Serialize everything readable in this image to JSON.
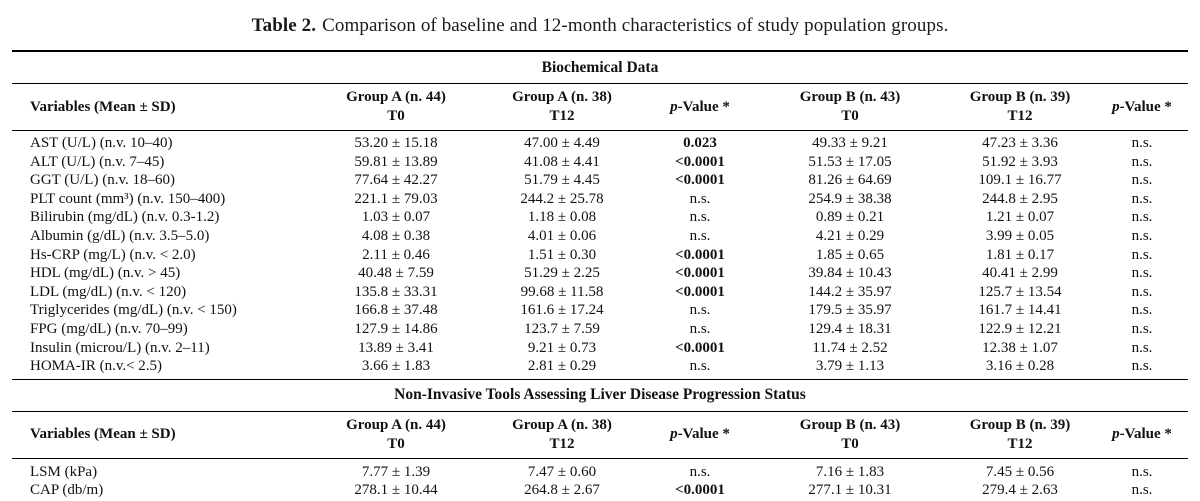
{
  "title": {
    "label": "Table 2.",
    "text": "Comparison of baseline and 12-month characteristics of study population groups."
  },
  "columns": [
    {
      "header": "Variables (Mean ± SD)"
    },
    {
      "group": "Group A (n. 44)",
      "time": "T0"
    },
    {
      "group": "Group A (n. 38)",
      "time": "T12"
    },
    {
      "p_italic": "p",
      "p_rest": "-Value *"
    },
    {
      "group": "Group B (n. 43)",
      "time": "T0"
    },
    {
      "group": "Group B (n. 39)",
      "time": "T12"
    },
    {
      "p_italic": "p",
      "p_rest": "-Value *"
    }
  ],
  "sections": [
    {
      "heading": "Biochemical Data",
      "rows": [
        {
          "cells": [
            "AST (U/L) (n.v. 10–40)",
            "53.20 ± 15.18",
            "47.00 ± 4.49",
            "0.023",
            "49.33 ± 9.21",
            "47.23 ± 3.36",
            "n.s."
          ]
        },
        {
          "cells": [
            "ALT (U/L) (n.v. 7–45)",
            "59.81 ± 13.89",
            "41.08 ± 4.41",
            "<0.0001",
            "51.53 ± 17.05",
            "51.92 ± 3.93",
            "n.s."
          ]
        },
        {
          "cells": [
            "GGT (U/L) (n.v. 18–60)",
            "77.64 ± 42.27",
            "51.79 ± 4.45",
            "<0.0001",
            "81.26 ± 64.69",
            "109.1 ± 16.77",
            "n.s."
          ]
        },
        {
          "cells": [
            "PLT count (mm³) (n.v. 150–400)",
            "221.1 ± 79.03",
            "244.2 ± 25.78",
            "n.s.",
            "254.9 ± 38.38",
            "244.8 ± 2.95",
            "n.s."
          ]
        },
        {
          "cells": [
            "Bilirubin (mg/dL) (n.v. 0.3-1.2)",
            "1.03 ± 0.07",
            "1.18 ± 0.08",
            "n.s.",
            "0.89 ± 0.21",
            "1.21 ± 0.07",
            "n.s."
          ]
        },
        {
          "cells": [
            "Albumin (g/dL) (n.v. 3.5–5.0)",
            "4.08 ± 0.38",
            "4.01 ± 0.06",
            "n.s.",
            "4.21 ± 0.29",
            "3.99 ± 0.05",
            "n.s."
          ]
        },
        {
          "cells": [
            "Hs-CRP (mg/L) (n.v. < 2.0)",
            "2.11 ± 0.46",
            "1.51 ± 0.30",
            "<0.0001",
            "1.85 ± 0.65",
            "1.81 ± 0.17",
            "n.s."
          ]
        },
        {
          "cells": [
            "HDL (mg/dL) (n.v. > 45)",
            "40.48 ± 7.59",
            "51.29 ± 2.25",
            "<0.0001",
            "39.84 ± 10.43",
            "40.41 ± 2.99",
            "n.s."
          ]
        },
        {
          "cells": [
            "LDL (mg/dL) (n.v. < 120)",
            "135.8 ± 33.31",
            "99.68 ± 11.58",
            "<0.0001",
            "144.2 ± 35.97",
            "125.7 ± 13.54",
            "n.s."
          ]
        },
        {
          "cells": [
            "Triglycerides (mg/dL) (n.v. < 150)",
            "166.8 ± 37.48",
            "161.6 ± 17.24",
            "n.s.",
            "179.5 ± 35.97",
            "161.7 ± 14.41",
            "n.s."
          ]
        },
        {
          "cells": [
            "FPG (mg/dL) (n.v. 70–99)",
            "127.9 ± 14.86",
            "123.7 ± 7.59",
            "n.s.",
            "129.4 ± 18.31",
            "122.9 ± 12.21",
            "n.s."
          ]
        },
        {
          "cells": [
            "Insulin (microu/L) (n.v. 2–11)",
            "13.89 ± 3.41",
            "9.21 ± 0.73",
            "<0.0001",
            "11.74 ± 2.52",
            "12.38 ± 1.07",
            "n.s."
          ]
        },
        {
          "cells": [
            "HOMA-IR (n.v.< 2.5)",
            "3.66 ± 1.83",
            "2.81 ± 0.29",
            "n.s.",
            "3.79 ± 1.13",
            "3.16 ± 0.28",
            "n.s."
          ]
        }
      ]
    },
    {
      "heading": "Non-Invasive Tools Assessing Liver Disease Progression Status",
      "rows": [
        {
          "cells": [
            "LSM (kPa)",
            "7.77 ± 1.39",
            "7.47 ± 0.60",
            "n.s.",
            "7.16 ± 1.83",
            "7.45 ± 0.56",
            "n.s."
          ]
        },
        {
          "cells": [
            "CAP (db/m)",
            "278.1 ± 10.44",
            "264.8 ± 2.67",
            "<0.0001",
            "277.1 ± 10.31",
            "279.4 ± 2.63",
            "n.s."
          ]
        }
      ]
    }
  ]
}
